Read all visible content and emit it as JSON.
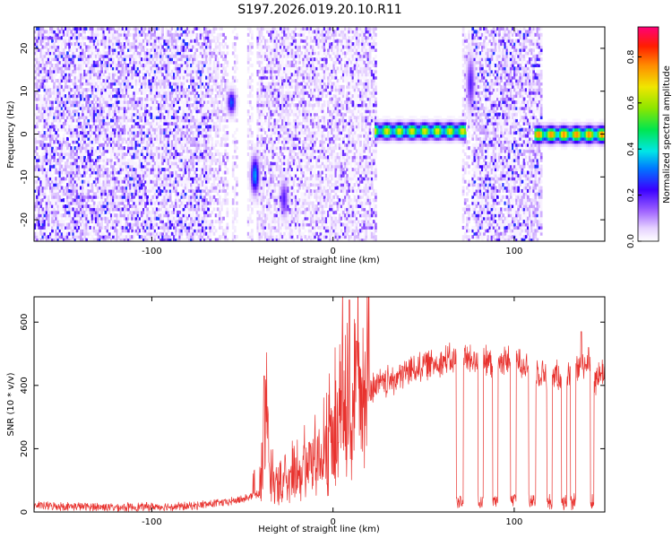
{
  "chart_data": [
    {
      "type": "heatmap",
      "title": "S197.2026.019.20.10.R11",
      "xlabel": "Height of straight line (km)",
      "ylabel": "Frequency (Hz)",
      "xlim": [
        -165,
        150
      ],
      "ylim": [
        -25,
        25
      ],
      "x_ticks": [
        -100,
        0,
        100
      ],
      "x_tick_labels": [
        "-100",
        "0",
        "100"
      ],
      "y_ticks": [
        -20,
        -10,
        0,
        10,
        20
      ],
      "y_tick_labels": [
        "-20",
        "-10",
        "0",
        "10",
        "20"
      ],
      "colorbar": {
        "label": "Normalized spectral amplitude",
        "range": [
          0,
          0.93
        ],
        "ticks": [
          0.0,
          0.2,
          0.4,
          0.6,
          0.8
        ],
        "tick_labels": [
          "0.0",
          "0.2",
          "0.4",
          "0.6",
          "0.8"
        ]
      },
      "noise_regions": [
        {
          "x_from": -165,
          "x_to": -67,
          "level": 0.08
        },
        {
          "x_from": -67,
          "x_to": -58,
          "level": 0.04
        },
        {
          "x_from": -56,
          "x_to": -53,
          "level": 0.03
        },
        {
          "x_from": -47,
          "x_to": -44,
          "level": 0.03
        },
        {
          "x_from": -42,
          "x_to": 24,
          "level": 0.06
        },
        {
          "x_from": 71,
          "x_to": 75,
          "level": 0.04
        },
        {
          "x_from": 77,
          "x_to": 115,
          "level": 0.08
        }
      ],
      "features": [
        {
          "x_from": 23,
          "x_to": 73,
          "freq": 0.8,
          "width": 1.6,
          "peak": 0.7
        },
        {
          "x_from": 111,
          "x_to": 150,
          "freq": 0.0,
          "width": 1.6,
          "peak": 0.8
        },
        {
          "x_center": -56,
          "freq": 7.5,
          "width": 2.5,
          "peak": 0.3
        },
        {
          "x_center": -43,
          "freq": -9.5,
          "width": 4.0,
          "peak": 0.35
        },
        {
          "x_center": -27,
          "freq": -15,
          "width": 4.0,
          "peak": 0.2
        },
        {
          "x_center": 76,
          "freq": 12,
          "width": 6.0,
          "peak": 0.2
        }
      ]
    },
    {
      "type": "line",
      "xlabel": "Height of straight line (km)",
      "ylabel": "SNR (10 * v/v)",
      "xlim": [
        -165,
        150
      ],
      "ylim": [
        0,
        680
      ],
      "x_ticks": [
        -100,
        0,
        100
      ],
      "x_tick_labels": [
        "-100",
        "0",
        "100"
      ],
      "y_ticks": [
        0,
        200,
        400,
        600
      ],
      "y_tick_labels": [
        "0",
        "200",
        "400",
        "600"
      ],
      "series": [
        {
          "name": "SNR",
          "color": "#e8322e",
          "x": [
            -165,
            -120,
            -80,
            -60,
            -50,
            -40,
            -37,
            -35,
            -30,
            -20,
            -10,
            0,
            5,
            10,
            15,
            20,
            30,
            40,
            50,
            60,
            70,
            80,
            90,
            100,
            110,
            120,
            130,
            140,
            145,
            150
          ],
          "y": [
            20,
            15,
            18,
            30,
            40,
            60,
            380,
            100,
            60,
            110,
            150,
            200,
            300,
            270,
            380,
            390,
            410,
            440,
            465,
            475,
            485,
            475,
            470,
            485,
            455,
            430,
            440,
            470,
            420,
            450
          ],
          "dropouts": [
            [
              68,
              72
            ],
            [
              80,
              83
            ],
            [
              88,
              91
            ],
            [
              98,
              101
            ],
            [
              108,
              112
            ],
            [
              118,
              121
            ],
            [
              126,
              129
            ],
            [
              131,
              134
            ],
            [
              142,
              144
            ]
          ],
          "spikes": [
            [
              -38,
              430
            ],
            [
              9,
              670
            ],
            [
              13,
              540
            ],
            [
              137,
              570
            ],
            [
              141,
              520
            ]
          ]
        }
      ]
    }
  ]
}
